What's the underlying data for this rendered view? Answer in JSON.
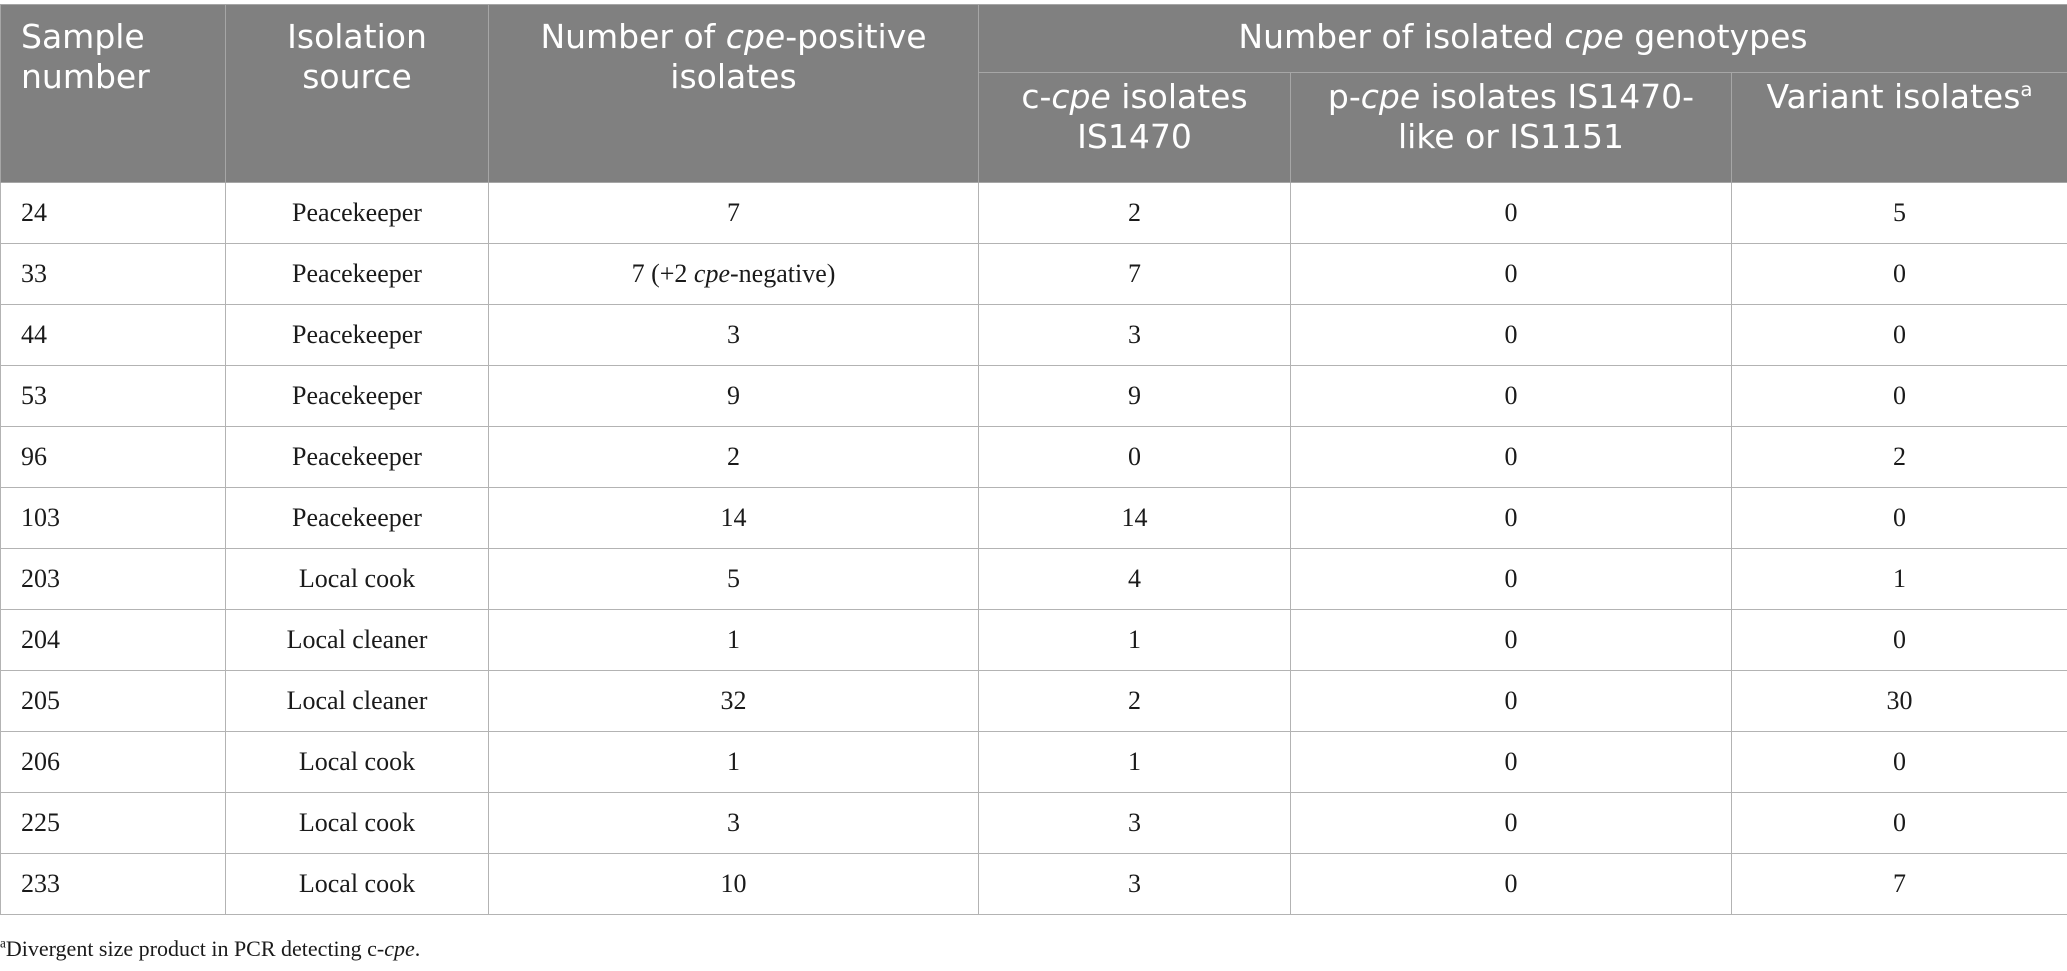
{
  "table": {
    "headers": {
      "sample_number": "Sample number",
      "isolation_source": "Isolation source",
      "positive_pre": "Number of ",
      "positive_it": "cpe",
      "positive_post": "-positive isolates",
      "group_pre": "Number of isolated ",
      "group_it": "cpe",
      "group_post": " genotypes",
      "ccpe_pre": "c-",
      "ccpe_it": "cpe",
      "ccpe_post": " isolates IS1470",
      "pcpe_pre": "p-",
      "pcpe_it": "cpe",
      "pcpe_post": " isolates IS1470-like or IS1151",
      "variant": "Variant isolates",
      "variant_sup": "a"
    },
    "rows": [
      {
        "sample": "24",
        "source": "Peacekeeper",
        "positive": "7",
        "positive_extra_pre": "",
        "positive_extra_it": "",
        "positive_extra_post": "",
        "ccpe": "2",
        "pcpe": "0",
        "variant": "5"
      },
      {
        "sample": "33",
        "source": "Peacekeeper",
        "positive": "7",
        "positive_extra_pre": " (+2 ",
        "positive_extra_it": "cpe",
        "positive_extra_post": "-negative)",
        "ccpe": "7",
        "pcpe": "0",
        "variant": "0"
      },
      {
        "sample": "44",
        "source": "Peacekeeper",
        "positive": "3",
        "positive_extra_pre": "",
        "positive_extra_it": "",
        "positive_extra_post": "",
        "ccpe": "3",
        "pcpe": "0",
        "variant": "0"
      },
      {
        "sample": "53",
        "source": "Peacekeeper",
        "positive": "9",
        "positive_extra_pre": "",
        "positive_extra_it": "",
        "positive_extra_post": "",
        "ccpe": "9",
        "pcpe": "0",
        "variant": "0"
      },
      {
        "sample": "96",
        "source": "Peacekeeper",
        "positive": "2",
        "positive_extra_pre": "",
        "positive_extra_it": "",
        "positive_extra_post": "",
        "ccpe": "0",
        "pcpe": "0",
        "variant": "2"
      },
      {
        "sample": "103",
        "source": "Peacekeeper",
        "positive": "14",
        "positive_extra_pre": "",
        "positive_extra_it": "",
        "positive_extra_post": "",
        "ccpe": "14",
        "pcpe": "0",
        "variant": "0"
      },
      {
        "sample": "203",
        "source": "Local cook",
        "positive": "5",
        "positive_extra_pre": "",
        "positive_extra_it": "",
        "positive_extra_post": "",
        "ccpe": "4",
        "pcpe": "0",
        "variant": "1"
      },
      {
        "sample": "204",
        "source": "Local cleaner",
        "positive": "1",
        "positive_extra_pre": "",
        "positive_extra_it": "",
        "positive_extra_post": "",
        "ccpe": "1",
        "pcpe": "0",
        "variant": "0"
      },
      {
        "sample": "205",
        "source": "Local cleaner",
        "positive": "32",
        "positive_extra_pre": "",
        "positive_extra_it": "",
        "positive_extra_post": "",
        "ccpe": "2",
        "pcpe": "0",
        "variant": "30"
      },
      {
        "sample": "206",
        "source": "Local cook",
        "positive": "1",
        "positive_extra_pre": "",
        "positive_extra_it": "",
        "positive_extra_post": "",
        "ccpe": "1",
        "pcpe": "0",
        "variant": "0"
      },
      {
        "sample": "225",
        "source": "Local cook",
        "positive": "3",
        "positive_extra_pre": "",
        "positive_extra_it": "",
        "positive_extra_post": "",
        "ccpe": "3",
        "pcpe": "0",
        "variant": "0"
      },
      {
        "sample": "233",
        "source": "Local cook",
        "positive": "10",
        "positive_extra_pre": "",
        "positive_extra_it": "",
        "positive_extra_post": "",
        "ccpe": "3",
        "pcpe": "0",
        "variant": "7"
      }
    ]
  },
  "footnote": {
    "marker": "a",
    "text_pre": "Divergent size product in PCR detecting c-",
    "text_it": "cpe",
    "text_post": "."
  },
  "colors": {
    "header_bg": "#808080",
    "header_text": "#ffffff",
    "grid": "#b3b3b3"
  }
}
